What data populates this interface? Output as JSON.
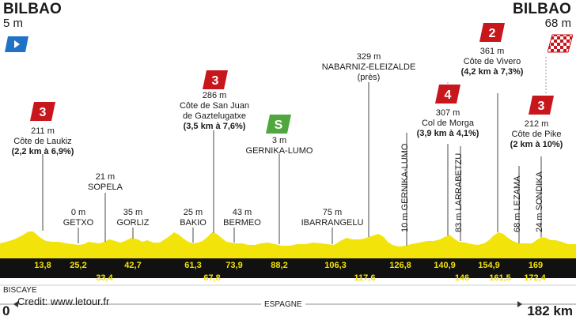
{
  "start": {
    "city": "BILBAO",
    "altitude": "5 m"
  },
  "finish": {
    "city": "BILBAO",
    "altitude": "68 m"
  },
  "colors": {
    "profile": "#f2e30a",
    "road": "#111111",
    "climb": "#c8161d",
    "sprint": "#4fa83d",
    "start_flag": "#1f73c7"
  },
  "climbs": [
    {
      "cat": "3",
      "altitude": "211 m",
      "name": "Côte de Laukiz",
      "detail": "(2,2 km à 6,9%)"
    },
    {
      "cat": "3",
      "altitude": "286 m",
      "name_1": "Côte de San Juan",
      "name_2": "de Gaztelugatxe",
      "detail": "(3,5 km à 7,6%)"
    },
    {
      "cat": "4",
      "altitude": "307 m",
      "name": "Col de Morga",
      "detail": "(3,9 km à 4,1%)"
    },
    {
      "cat": "2",
      "altitude": "361 m",
      "name": "Côte de Vivero",
      "detail": "(4,2 km à 7,3%)"
    },
    {
      "cat": "3",
      "altitude": "212 m",
      "name": "Côte de Pike",
      "detail": "(2 km à 10%)"
    }
  ],
  "sprint": {
    "badge": "S",
    "altitude": "3 m",
    "name": "GERNIKA-LUMO"
  },
  "places": [
    {
      "altitude": "21 m",
      "name": "SOPELA"
    },
    {
      "altitude": "0 m",
      "name": "GETXO"
    },
    {
      "altitude": "35 m",
      "name": "GORLIZ"
    },
    {
      "altitude": "25 m",
      "name": "BAKIO"
    },
    {
      "altitude": "43 m",
      "name": "BERMEO"
    },
    {
      "altitude": "75 m",
      "name": "IBARRANGELU"
    },
    {
      "altitude": "329 m",
      "name": "NABARNIZ-ELEIZALDE",
      "note": "(près)"
    }
  ],
  "vertical_places": [
    "10 m GERNIKA-LUMO",
    "83 m LARRABETZU",
    "68 m LEZAMA",
    "24 m SONDIKA"
  ],
  "km_top": [
    "13,8",
    "25,2",
    "42,7",
    "61,3",
    "73,9",
    "88,2",
    "106,3",
    "126,8",
    "140,9",
    "154,9",
    "169"
  ],
  "km_bottom": [
    "33,4",
    "67,8",
    "117,6",
    "146",
    "161,5",
    "172,4"
  ],
  "axis": {
    "start": "0",
    "end": "182 km"
  },
  "region_left": "BISCAYE",
  "region_center": "ESPAGNE",
  "credit": "Credit: www.letour.fr"
}
